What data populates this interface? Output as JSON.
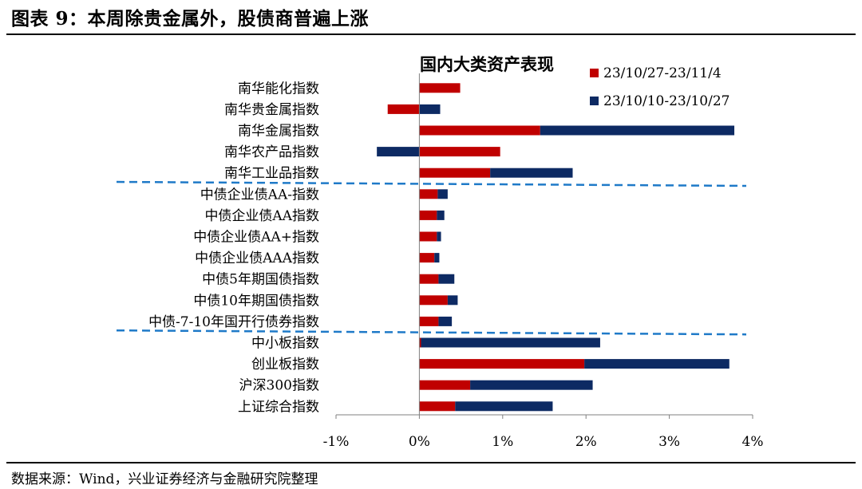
{
  "figure": {
    "title": "图表 9：本周除贵金属外，股债商普遍上涨",
    "source": "数据来源：Wind，兴业证券经济与金融研究院整理"
  },
  "colors": {
    "series1": "#c00000",
    "series2": "#0d2a63",
    "divider": "#1f7ac8",
    "axis": "#808080"
  },
  "chart_data": {
    "type": "bar",
    "orientation": "horizontal",
    "stacked": true,
    "title": "国内大类资产表现",
    "categories": [
      "南华能化指数",
      "南华贵金属指数",
      "南华金属指数",
      "南华农产品指数",
      "南华工业品指数",
      "中债企业债AA-指数",
      "中债企业债AA指数",
      "中债企业债AA+指数",
      "中债企业债AAA指数",
      "中债5年期国债指数",
      "中债10年期国债指数",
      "中债-7-10年国开行债券指数",
      "中小板指数",
      "创业板指数",
      "沪深300指数",
      "上证综合指数"
    ],
    "series": [
      {
        "name": "23/10/27-23/11/4",
        "color": "#c00000",
        "values": [
          0.49,
          -0.38,
          1.45,
          0.97,
          0.85,
          0.22,
          0.21,
          0.21,
          0.18,
          0.23,
          0.34,
          0.23,
          0.02,
          1.98,
          0.61,
          0.43
        ]
      },
      {
        "name": "23/10/10-23/10/27",
        "color": "#0d2a63",
        "values": [
          0.0,
          0.25,
          2.33,
          -0.51,
          0.99,
          0.12,
          0.09,
          0.05,
          0.06,
          0.19,
          0.12,
          0.16,
          2.15,
          1.74,
          1.47,
          1.17
        ]
      }
    ],
    "xlim": [
      -1,
      4
    ],
    "xticks": [
      -1,
      0,
      1,
      2,
      3,
      4
    ],
    "xtick_labels": [
      "-1%",
      "0%",
      "1%",
      "2%",
      "3%",
      "4%"
    ],
    "group_dividers_after": [
      4,
      11
    ],
    "legend_position": "top-right",
    "grid": false
  }
}
